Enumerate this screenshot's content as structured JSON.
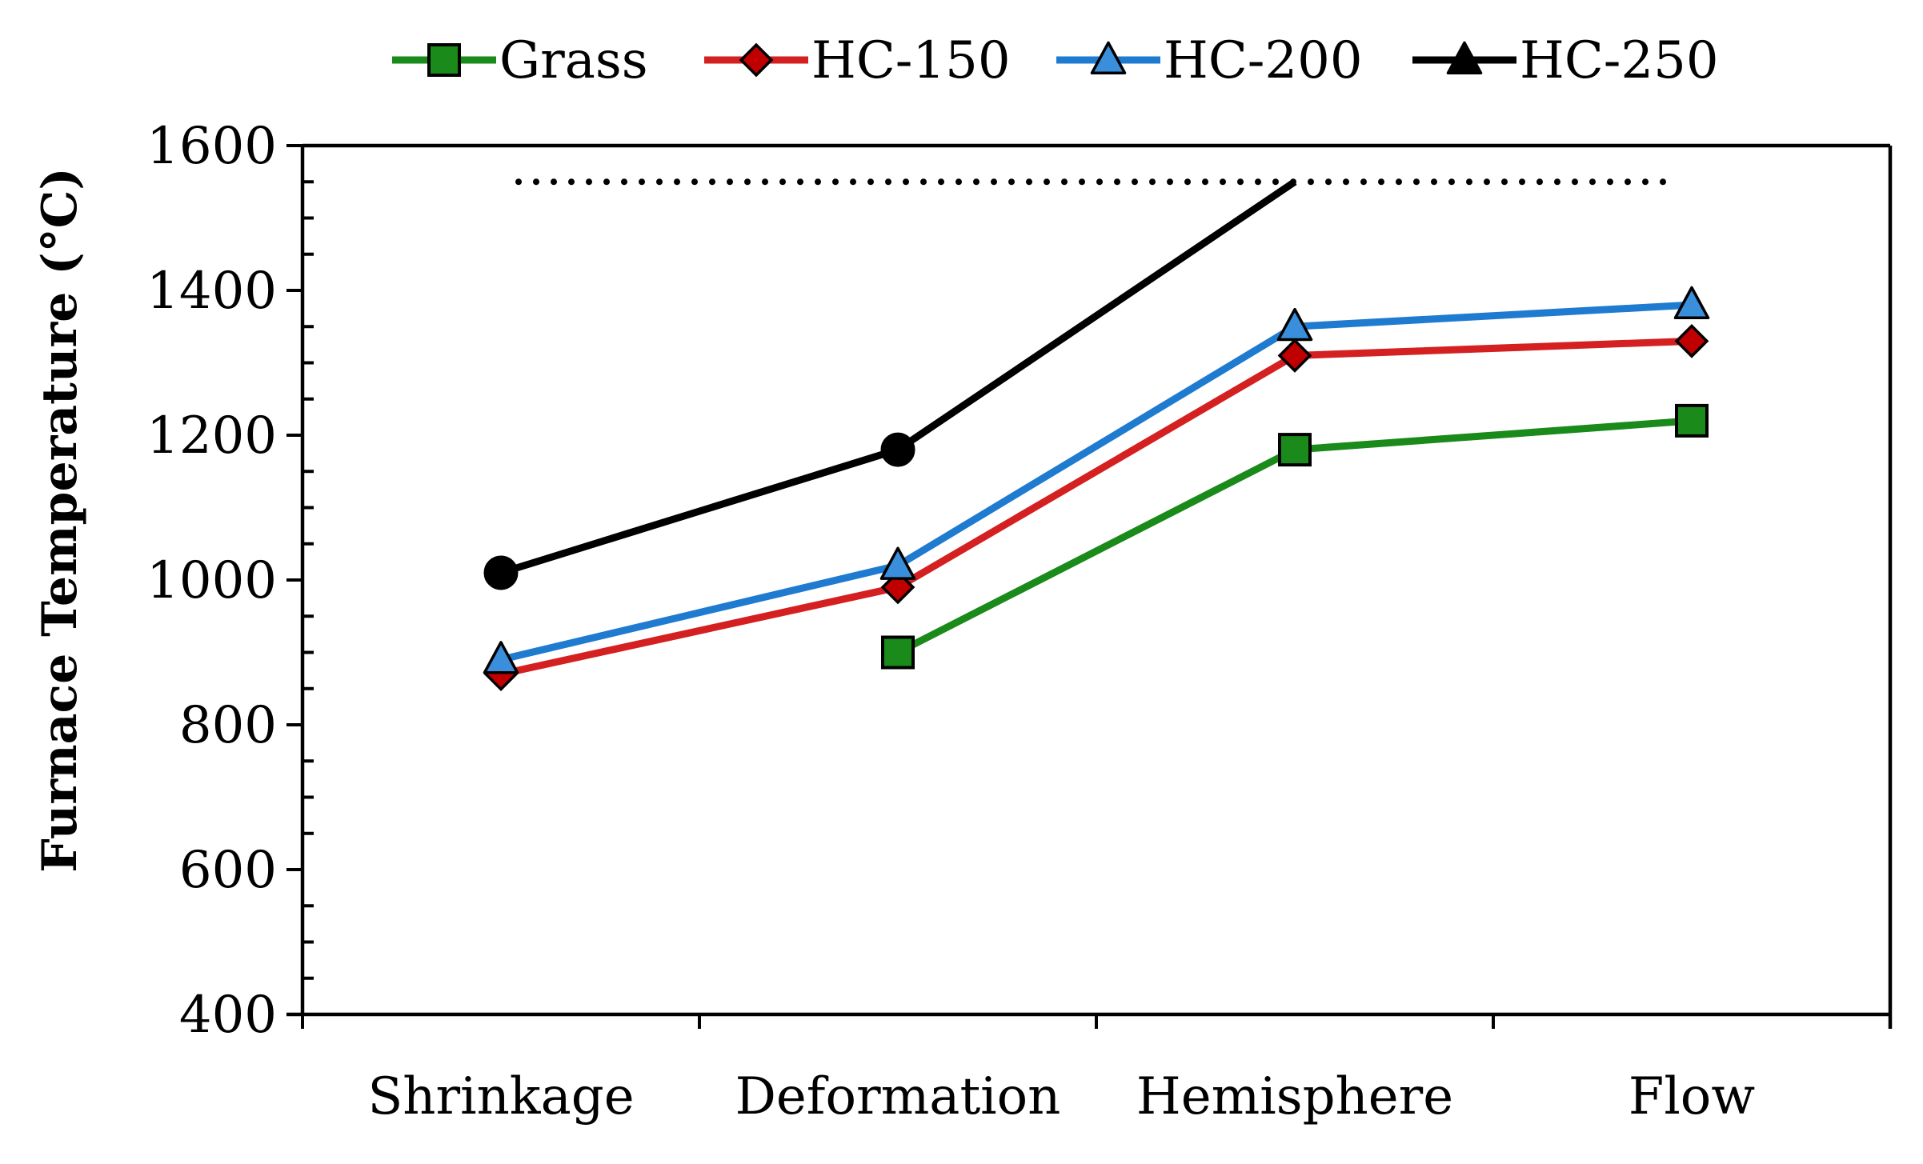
{
  "chart_data": {
    "type": "line",
    "title": "",
    "xlabel": "",
    "ylabel": "Furnace Temperature (°C)",
    "categories": [
      "Shrinkage",
      "Deformation",
      "Hemisphere",
      "Flow"
    ],
    "ylim": [
      400,
      1600
    ],
    "yticks": [
      400,
      600,
      800,
      1000,
      1200,
      1400,
      1600
    ],
    "y_minor_step": 50,
    "grid": false,
    "legend_position": "top",
    "reference_line": {
      "y": 1550,
      "style": "dotted",
      "color": "#000000"
    },
    "series": [
      {
        "name": "Grass",
        "color": "#1a8a1a",
        "marker": "square",
        "marker_fill": "#1a8a1a",
        "values": [
          null,
          900,
          1180,
          1220
        ]
      },
      {
        "name": "HC-150",
        "color": "#d42020",
        "marker": "diamond",
        "marker_fill": "#c00000",
        "values": [
          870,
          990,
          1310,
          1330
        ]
      },
      {
        "name": "HC-200",
        "color": "#1f7bd0",
        "marker": "triangle",
        "marker_fill": "#3a8fdc",
        "values": [
          890,
          1020,
          1350,
          1380
        ]
      },
      {
        "name": "HC-250",
        "color": "#000000",
        "marker": "circle",
        "legend_marker": "triangle",
        "marker_fill": "#000000",
        "values": [
          1010,
          1180,
          1550,
          null
        ]
      }
    ]
  }
}
